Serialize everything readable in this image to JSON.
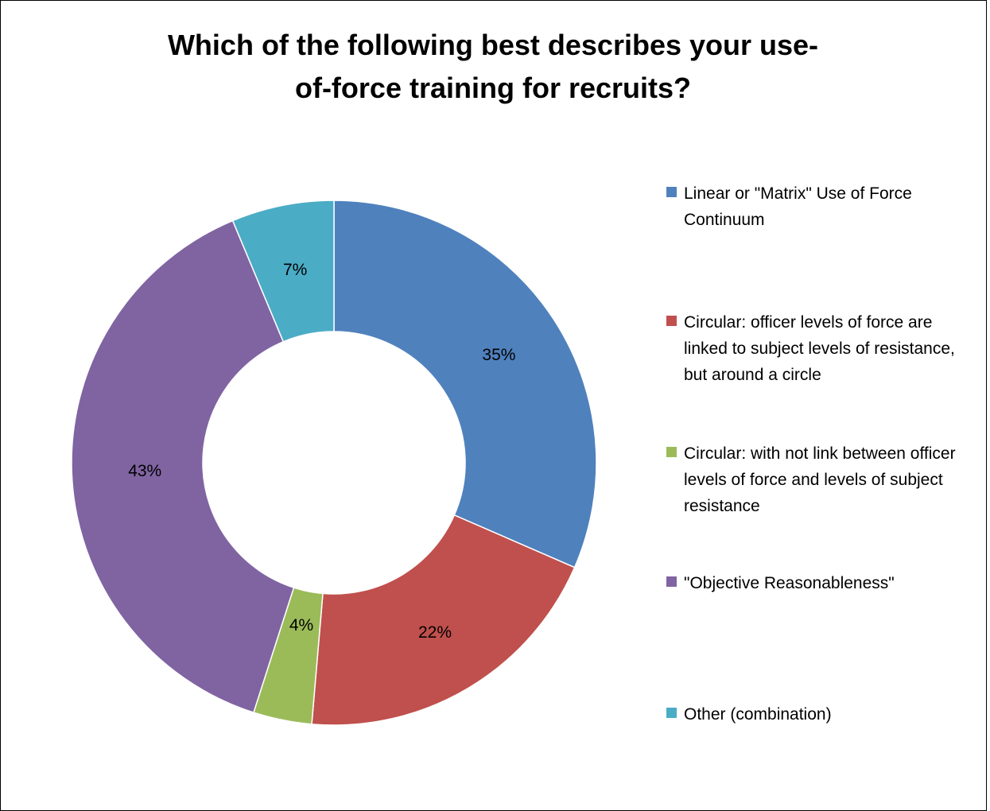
{
  "chart_data": {
    "type": "pie",
    "variant": "donut",
    "title_lines": [
      "Which of the following best describes your use-",
      "of-force training for recruits?"
    ],
    "slices": [
      {
        "label": "Linear or \"Matrix\" Use of Force Continuum",
        "value": 35,
        "value_label": "35%",
        "color": "#4F81BD"
      },
      {
        "label": "Circular: officer levels of force are linked to subject levels of resistance, but around a circle",
        "value": 22,
        "value_label": "22%",
        "color": "#C0504D"
      },
      {
        "label": "Circular: with not link between officer levels of force and levels of subject resistance",
        "value": 4,
        "value_label": "4%",
        "color": "#9BBB59"
      },
      {
        "label": "\"Objective Reasonableness\"",
        "value": 43,
        "value_label": "43%",
        "color": "#8064A2"
      },
      {
        "label": "Other (combination)",
        "value": 7,
        "value_label": "7%",
        "color": "#4BACC6"
      }
    ],
    "legend_position": "right"
  }
}
